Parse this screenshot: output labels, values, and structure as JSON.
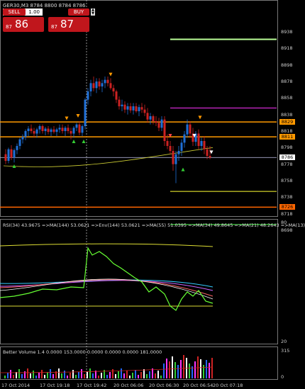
{
  "symbol_title": "GER30,M3  8784 8800 8784 8786",
  "trade_panel": {
    "sell_label": "SELL",
    "buy_label": "BUY",
    "lot_value": "1.00",
    "sell_price_small": "87",
    "sell_price_big": "86",
    "buy_price_small": "87",
    "buy_price_big": "87"
  },
  "price_axis": [
    "8938",
    "8918",
    "8898",
    "8878",
    "8858",
    "8838",
    "8818",
    "8798",
    "8778",
    "8758",
    "8738",
    "8718",
    "8698"
  ],
  "price_tags": [
    {
      "text": "8829",
      "color": "#ff9900"
    },
    {
      "text": "8811",
      "color": "#ff9900"
    },
    {
      "text": "8786",
      "color": "#ffffff"
    },
    {
      "text": "8726",
      "color": "#ff6600"
    }
  ],
  "indicator1": {
    "label": "RSI(34) 43.9675  =>MA(144) 53.0621  =>Env(144) 53.0621  =>MA(55) 51.0395  =>MA(34) 49.8645  =>MA(21) 48.2643  =>MA(13)",
    "axis": [
      "80",
      "20"
    ]
  },
  "indicator2": {
    "label": "Better Volume 1.4 0.0000 153.0000 0.0000 0.0000 0.0000 181.0000",
    "axis": [
      "315",
      "0"
    ]
  },
  "time_axis": [
    "17 Oct 2014",
    "17 Oct 19:18",
    "17 Oct 19:42",
    "20 Oct 06:06",
    "20 Oct 06:30",
    "20 Oct 06:54",
    "20 Oct 07:18"
  ],
  "colors": {
    "bull": "#1f6fd6",
    "bear": "#cc2222",
    "orange": "#ff9900",
    "green_line": "#66ff33",
    "magenta": "#ff33ff",
    "yellow": "#ffff00"
  }
}
